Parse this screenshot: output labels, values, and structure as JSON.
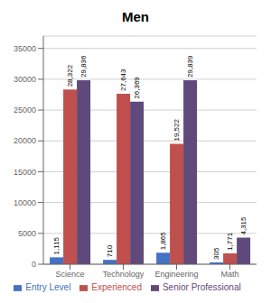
{
  "chart_data": {
    "type": "bar",
    "title": "Men",
    "categories": [
      "Science",
      "Technology",
      "Engineering",
      "Math"
    ],
    "series": [
      {
        "name": "Entry Level",
        "color": "#4472C4",
        "values": [
          1115,
          710,
          1865,
          305
        ],
        "value_labels": [
          "1,115",
          "710",
          "1,865",
          "305"
        ]
      },
      {
        "name": "Experienced",
        "color": "#C0504D",
        "values": [
          28322,
          27643,
          19522,
          1771
        ],
        "value_labels": [
          "28,322",
          "27,643",
          "19,522",
          "1,771"
        ]
      },
      {
        "name": "Senior Professional",
        "color": "#604A7B",
        "values": [
          29836,
          26369,
          29839,
          4315
        ],
        "value_labels": [
          "29,836",
          "26,369",
          "29,839",
          "4,315"
        ]
      }
    ],
    "ylim": [
      0,
      37000
    ],
    "yticks": [
      0,
      5000,
      10000,
      15000,
      20000,
      25000,
      30000,
      35000
    ],
    "grid": true,
    "legend": "bottom",
    "data_labels": true
  }
}
